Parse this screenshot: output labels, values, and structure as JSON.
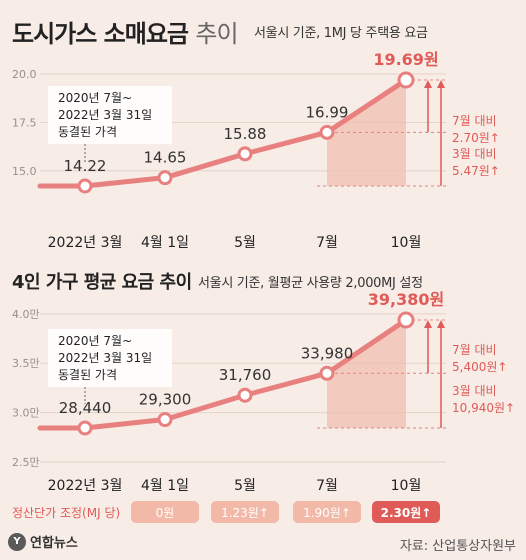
{
  "header": {
    "title": "도시가스 소매요금",
    "title_light": "추이",
    "subtitle": "서울시 기준, 1MJ 당 주택용 요금"
  },
  "section2": {
    "title": "4인 가구 평균 요금 추이",
    "subtitle": "서울시 기준, 월평균 사용량 2,000MJ 설정"
  },
  "adjustment": {
    "label": "정산단가 조정(MJ 당)",
    "values": [
      "0원",
      "1.23원↑",
      "1.90원↑",
      "2.30원↑"
    ]
  },
  "footer": {
    "logo": "연합뉴스",
    "logo_mark": "Y",
    "source": "자료: 산업통상자원부"
  },
  "colors": {
    "line": "#e8807f",
    "fill": "#f2b9a8",
    "accent": "#e05a57",
    "background": "#f7ece6"
  },
  "chart_data": [
    {
      "type": "line",
      "categories": [
        "2022년 3월",
        "4월 1일",
        "5월",
        "7월",
        "10월"
      ],
      "values": [
        14.22,
        14.65,
        15.88,
        16.99,
        19.69
      ],
      "value_labels": [
        "14.22",
        "14.65",
        "15.88",
        "16.99",
        "19.69원"
      ],
      "ylim": [
        14.0,
        20.0
      ],
      "yticks": [
        "20.0",
        "17.5",
        "15.0"
      ],
      "ytick_values": [
        20.0,
        17.5,
        15.0
      ],
      "note": [
        "2020년 7월~",
        "2022년 3월 31일",
        "동결된 가격"
      ],
      "annotations": [
        {
          "lines": [
            "7월 대비",
            "2.70원↑"
          ]
        },
        {
          "lines": [
            "3월 대비",
            "5.47원↑"
          ]
        }
      ]
    },
    {
      "type": "line",
      "categories": [
        "2022년 3월",
        "4월 1일",
        "5월",
        "7월",
        "10월"
      ],
      "values": [
        28440,
        29300,
        31760,
        33980,
        39380
      ],
      "value_labels": [
        "28,440",
        "29,300",
        "31,760",
        "33,980",
        "39,380원"
      ],
      "ylim": [
        25000,
        40000
      ],
      "yticks": [
        "4.0만",
        "3.5만",
        "3.0만",
        "2.5만"
      ],
      "ytick_values": [
        40000,
        35000,
        30000,
        25000
      ],
      "note": [
        "2020년 7월~",
        "2022년 3월 31일",
        "동결된 가격"
      ],
      "annotations": [
        {
          "lines": [
            "7월 대비",
            "5,400원↑"
          ]
        },
        {
          "lines": [
            "3월 대비",
            "10,940원↑"
          ]
        }
      ]
    }
  ]
}
